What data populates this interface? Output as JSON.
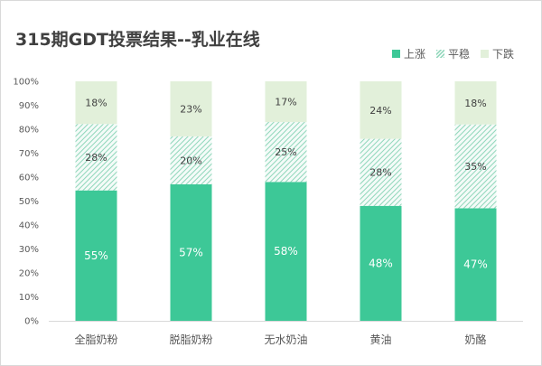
{
  "chart_data": {
    "type": "bar",
    "stacked": true,
    "percent_stacked": true,
    "title": "315期GDT投票结果--乳业在线",
    "categories": [
      "全脂奶粉",
      "脱脂奶粉",
      "无水奶油",
      "黄油",
      "奶酪"
    ],
    "series": [
      {
        "name": "上涨",
        "values": [
          55,
          57,
          58,
          48,
          47
        ],
        "color": "#3dc897",
        "pattern": "solid"
      },
      {
        "name": "平稳",
        "values": [
          28,
          20,
          25,
          28,
          35
        ],
        "color": "#8fd6ba",
        "pattern": "diagonal-hatch"
      },
      {
        "name": "下跌",
        "values": [
          18,
          23,
          17,
          24,
          18
        ],
        "color": "#e2f0da",
        "pattern": "solid"
      }
    ],
    "ylim": [
      0,
      100
    ],
    "yticks": [
      "0%",
      "10%",
      "20%",
      "30%",
      "40%",
      "50%",
      "60%",
      "70%",
      "80%",
      "90%",
      "100%"
    ],
    "value_suffix": "%",
    "legend_position": "top-right",
    "grid": false
  }
}
